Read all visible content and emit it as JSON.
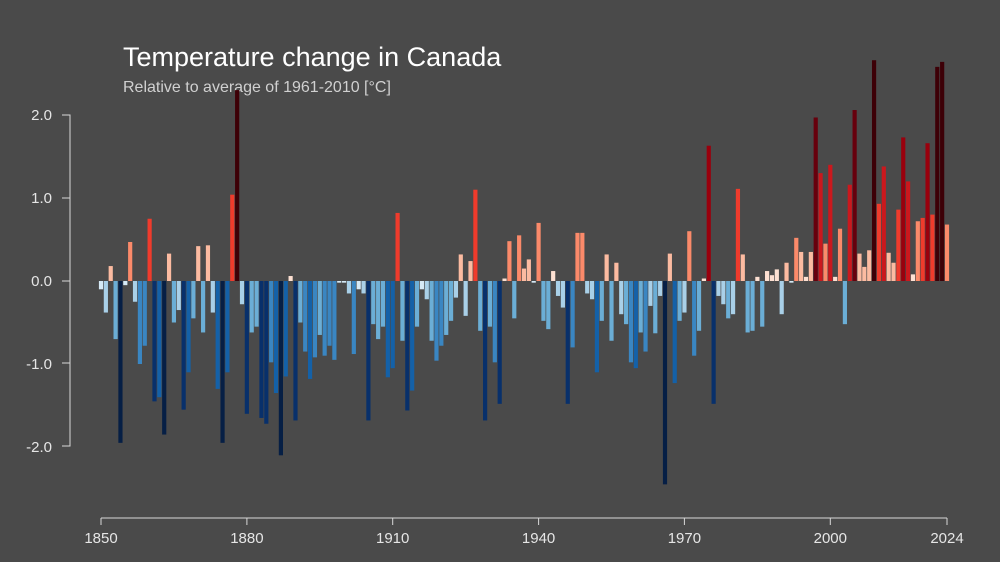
{
  "chart_data": {
    "type": "bar",
    "title": "Temperature change in Canada",
    "subtitle": "Relative to average of 1961-2010  [°C]",
    "xlabel": "",
    "ylabel": "",
    "x_start": 1850,
    "x_end": 2024,
    "xlim": [
      1850,
      2024
    ],
    "ylim": [
      -2.5,
      2.6
    ],
    "x_ticks": [
      1850,
      1880,
      1910,
      1940,
      1970,
      2000,
      2024
    ],
    "y_ticks": [
      2.0,
      1.0,
      0.0,
      -1.0,
      -2.0
    ],
    "x_tick_labels": [
      "1850",
      "1880",
      "1910",
      "1940",
      "1970",
      "2000",
      "2024"
    ],
    "y_tick_labels": [
      "2.0",
      "1.0",
      "0.0",
      "-1.0",
      "-2.0"
    ],
    "color_scale": {
      "neg": [
        "#d6eaf6",
        "#a9d0e8",
        "#6baed6",
        "#3a86c2",
        "#1461a8",
        "#08306b",
        "#061f45"
      ],
      "pos": [
        "#fde0d2",
        "#fcbba1",
        "#fb8a6a",
        "#ef3b2c",
        "#cb181d",
        "#99000d",
        "#67000d",
        "#3d0007"
      ]
    },
    "values": [
      -0.1,
      -0.38,
      0.18,
      -0.7,
      -1.95,
      -0.05,
      0.47,
      -0.25,
      -1.0,
      -0.78,
      0.75,
      -1.45,
      -1.4,
      -1.85,
      0.33,
      -0.5,
      -0.35,
      -1.55,
      -1.1,
      -0.45,
      0.42,
      -0.62,
      0.43,
      -0.38,
      -1.3,
      -1.95,
      -1.1,
      1.04,
      2.3,
      -0.28,
      -1.6,
      -0.62,
      -0.55,
      -1.65,
      -1.72,
      -0.98,
      -1.35,
      -2.1,
      -1.15,
      0.06,
      -1.68,
      -0.5,
      -0.85,
      -1.18,
      -0.92,
      -0.65,
      -0.9,
      -0.78,
      -0.95,
      -0.02,
      -0.02,
      -0.15,
      -0.88,
      -0.1,
      -0.15,
      -1.68,
      -0.52,
      -0.7,
      -0.55,
      -1.16,
      -1.05,
      0.82,
      -0.72,
      -1.56,
      -1.32,
      -0.55,
      -0.1,
      -0.22,
      -0.72,
      -0.96,
      -0.78,
      -0.65,
      -0.48,
      -0.2,
      0.32,
      -0.42,
      0.24,
      1.1,
      -0.6,
      -1.68,
      -0.55,
      -0.98,
      -1.48,
      0.03,
      0.48,
      -0.45,
      0.55,
      0.15,
      0.26,
      -0.02,
      0.7,
      -0.48,
      -0.58,
      0.12,
      -0.18,
      -0.32,
      -1.48,
      -0.8,
      0.58,
      0.58,
      -0.15,
      -0.22,
      -1.1,
      -0.48,
      0.32,
      -0.72,
      0.22,
      -0.4,
      -0.52,
      -0.98,
      -1.05,
      -0.62,
      -0.85,
      -0.3,
      -0.63,
      -0.18,
      -2.45,
      0.33,
      -1.23,
      -0.48,
      -0.38,
      0.6,
      -0.9,
      -0.6,
      0.03,
      1.63,
      -1.48,
      -0.18,
      -0.28,
      -0.45,
      -0.4,
      1.11,
      0.32,
      -0.62,
      -0.6,
      0.05,
      -0.55,
      0.12,
      0.07,
      0.14,
      -0.4,
      0.22,
      -0.02,
      0.52,
      0.35,
      0.05,
      0.35,
      1.97,
      1.3,
      0.45,
      1.4,
      0.05,
      0.63,
      -0.52,
      1.16,
      2.06,
      0.33,
      0.17,
      0.37,
      2.66,
      0.93,
      1.38,
      0.34,
      0.22,
      0.86,
      1.73,
      1.2,
      0.08,
      0.72,
      0.76,
      1.66,
      0.8,
      2.58,
      2.64,
      0.68
    ]
  }
}
